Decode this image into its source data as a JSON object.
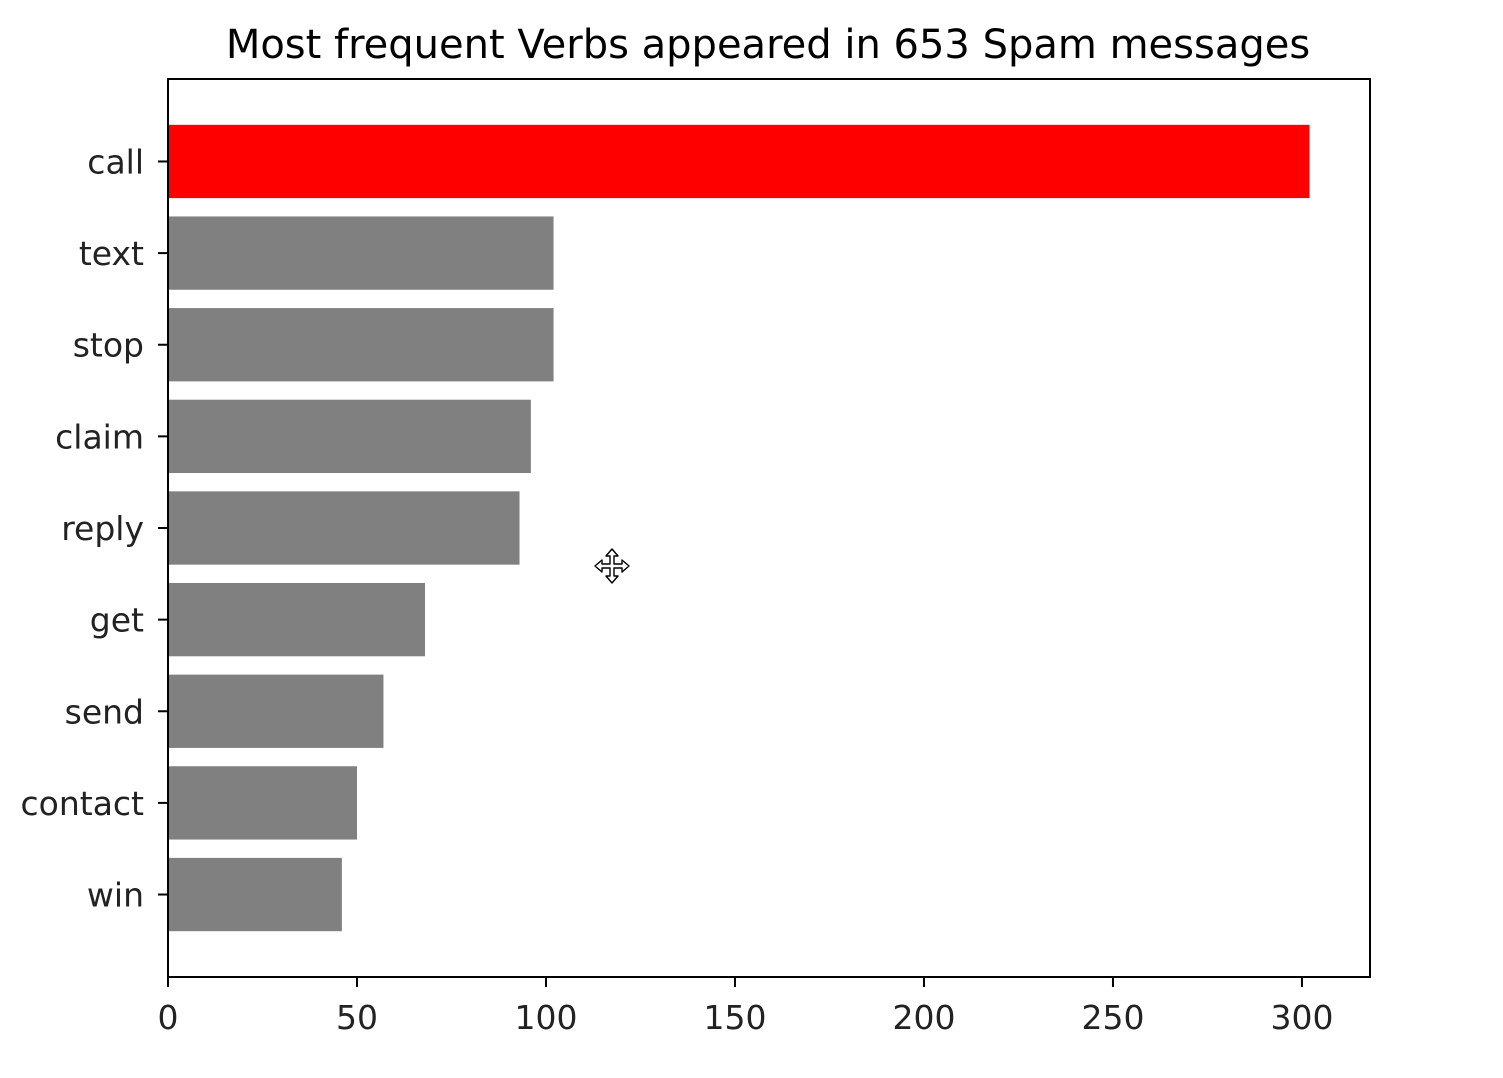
{
  "chart_data": {
    "type": "bar",
    "orientation": "horizontal",
    "title": "Most frequent Verbs appeared in 653 Spam messages",
    "xlabel": "",
    "ylabel": "",
    "categories": [
      "call",
      "text",
      "stop",
      "claim",
      "reply",
      "get",
      "send",
      "contact",
      "win"
    ],
    "values": [
      302,
      102,
      102,
      96,
      93,
      68,
      57,
      50,
      46
    ],
    "bar_colors": [
      "#ff0000",
      "#808080",
      "#808080",
      "#808080",
      "#808080",
      "#808080",
      "#808080",
      "#808080",
      "#808080"
    ],
    "xlim": [
      0,
      318
    ],
    "xticks": [
      0,
      50,
      100,
      150,
      200,
      250,
      300
    ],
    "xtick_labels": [
      "0",
      "50",
      "100",
      "150",
      "200",
      "250",
      "300"
    ],
    "grid": false,
    "legend": "none"
  },
  "cursor": {
    "icon": "move-cursor-icon"
  }
}
